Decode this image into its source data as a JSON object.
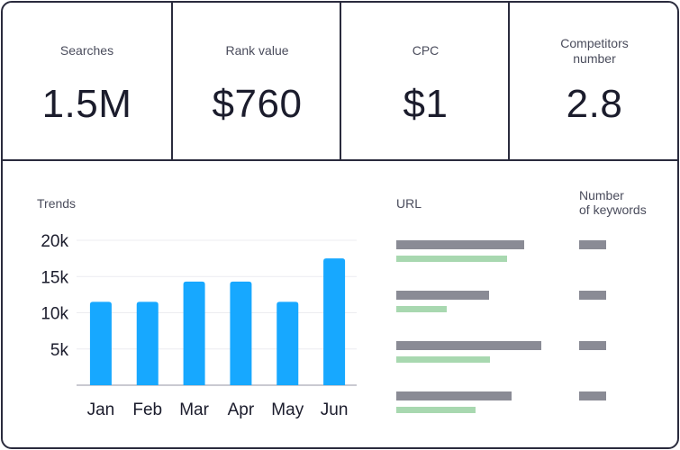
{
  "metrics": [
    {
      "label": "Searches",
      "value": "1.5M"
    },
    {
      "label": "Rank value",
      "value": "$760"
    },
    {
      "label": "CPC",
      "value": "$1"
    },
    {
      "label": "Competitors number",
      "value": "2.8"
    }
  ],
  "trends": {
    "title": "Trends"
  },
  "chart_data": {
    "type": "bar",
    "title": "Trends",
    "categories": [
      "Jan",
      "Feb",
      "Mar",
      "Apr",
      "May",
      "Jun"
    ],
    "values": [
      11500,
      11500,
      14300,
      14300,
      11500,
      17500
    ],
    "ylim": [
      0,
      20000
    ],
    "yticks": [
      5000,
      10000,
      15000,
      20000
    ],
    "ytick_labels": [
      "5k",
      "10k",
      "15k",
      "20k"
    ],
    "grid": true,
    "bar_color": "#17a8ff"
  },
  "url_table": {
    "url_header": "URL",
    "keywords_header": "Number\nof keywords"
  },
  "colors": {
    "border": "#2a2b3d",
    "placeholder_gray": "#8a8b95",
    "placeholder_green": "#a8d8b0",
    "bar": "#17a8ff"
  }
}
